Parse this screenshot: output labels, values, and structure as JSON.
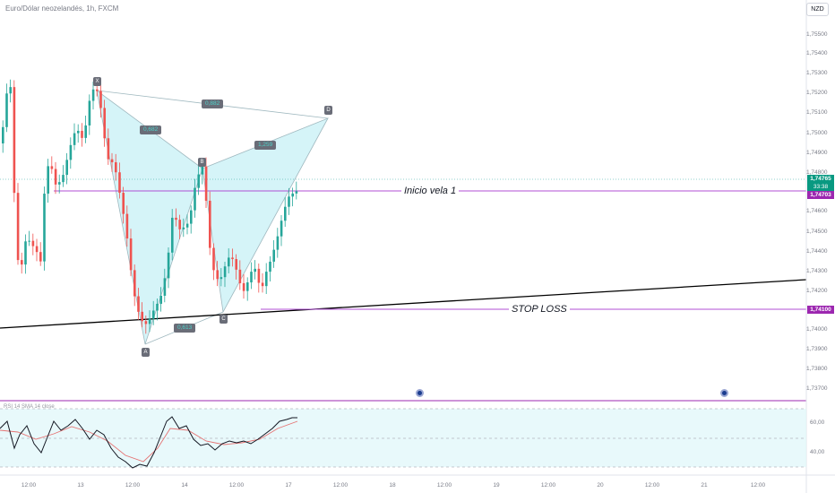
{
  "header": {
    "symbol_title": "Euro/Dólar neozelandés, 1h, FXCM",
    "currency_button": "NZD"
  },
  "price_axis": {
    "ticks": [
      "1,75500",
      "1,75400",
      "1,75300",
      "1,75200",
      "1,75100",
      "1,75000",
      "1,74900",
      "1,74800",
      "1,74600",
      "1,74500",
      "1,74400",
      "1,74300",
      "1,74200",
      "1,74000",
      "1,73900",
      "1,73800",
      "1,73700"
    ],
    "current_price": "1,74765",
    "countdown": "33:38",
    "inicio_price": "1,74703",
    "stop_price": "1,74100"
  },
  "time_axis": {
    "ticks": [
      "12:00",
      "13",
      "12:00",
      "14",
      "12:00",
      "17",
      "12:00",
      "18",
      "12:00",
      "19",
      "12:00",
      "20",
      "12:00",
      "21",
      "12:00"
    ]
  },
  "rsi": {
    "label": "RSI 14 SMA 14 close",
    "ticks": [
      "60,00",
      "40,00"
    ]
  },
  "annotations": {
    "inicio_label": "Inicio vela 1",
    "stop_label": "STOP LOSS",
    "pattern_points": [
      "X",
      "A",
      "B",
      "C",
      "D"
    ],
    "ratios": {
      "xa": "0,882",
      "ab": "0,682",
      "bc": "0,613",
      "bd": "1,259"
    }
  },
  "colors": {
    "bull": "#26a69a",
    "bear": "#ef5350",
    "pattern_fill": "#b2ebf2",
    "purple": "#9c27b0",
    "trendline": "#000000"
  }
}
